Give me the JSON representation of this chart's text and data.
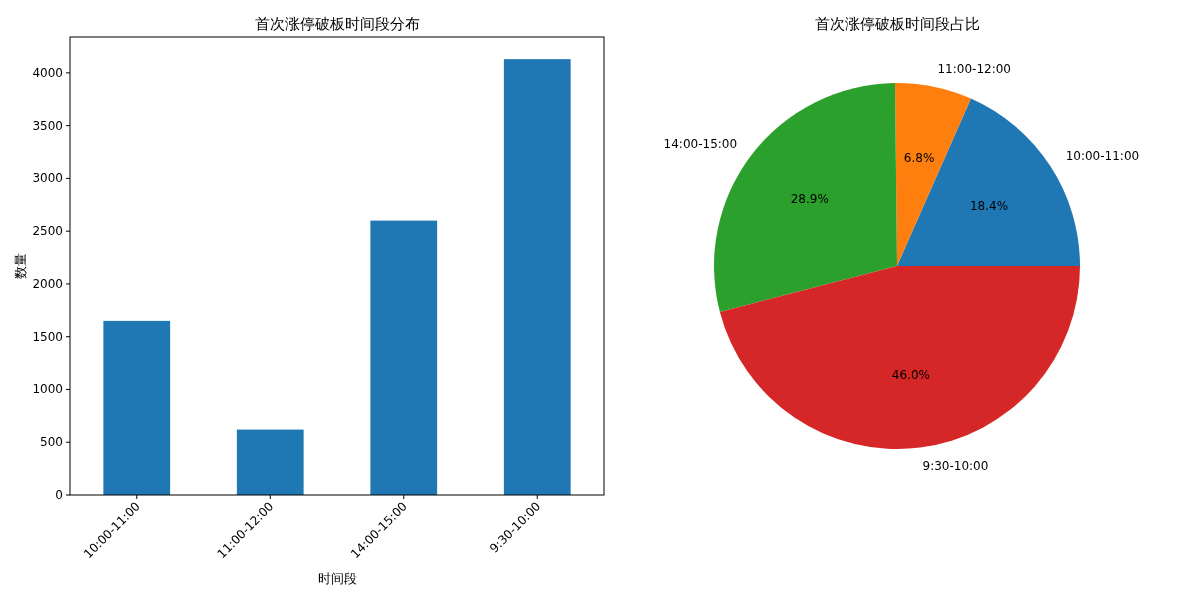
{
  "chart_data": [
    {
      "type": "bar",
      "title": "首次涨停破板时间段分布",
      "xlabel": "时间段",
      "ylabel": "数量",
      "categories": [
        "10:00-11:00",
        "11:00-12:00",
        "14:00-15:00",
        "9:30-10:00"
      ],
      "values": [
        1650,
        620,
        2600,
        4130
      ],
      "color": "#1f77b4",
      "ylim": [
        0,
        4340
      ],
      "yticks": [
        0,
        500,
        1000,
        1500,
        2000,
        2500,
        3000,
        3500,
        4000
      ],
      "grid": false
    },
    {
      "type": "pie",
      "title": "首次涨停破板时间段占比",
      "categories": [
        "10:00-11:00",
        "11:00-12:00",
        "14:00-15:00",
        "9:30-10:00"
      ],
      "values": [
        18.4,
        6.8,
        28.9,
        46.0
      ],
      "colors": [
        "#1f77b4",
        "#ff7f0e",
        "#2ca02c",
        "#d62728"
      ],
      "value_labels": [
        "18.4%",
        "6.8%",
        "28.9%",
        "46.0%"
      ]
    }
  ]
}
